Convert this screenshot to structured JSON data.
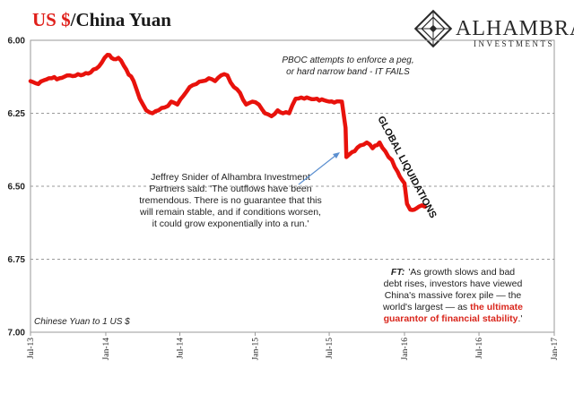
{
  "header": {
    "title_part1": "US $",
    "title_part2": "/China Yuan"
  },
  "logo": {
    "name": "ALHAMBRA",
    "sub": "INVESTMENTS",
    "icon": "diamond-lattice-icon"
  },
  "annotations": {
    "pboc": [
      "PBOC attempts to enforce a peg,",
      "or hard narrow band - IT FAILS"
    ],
    "global_liquidations": "GLOBAL LIQUIDATIONS",
    "snider": [
      "Jeffrey Snider of Alhambra Investment",
      "Partners said: 'The outflows have been",
      "tremendous. There is no guarantee that this",
      "will remain stable, and if conditions worsen,",
      "it could grow exponentially into a run.'"
    ],
    "ft_label": "FT:",
    "ft_line1": "'As growth slows and bad",
    "ft_line2": "debt rises, investors have viewed",
    "ft_line3": "China's massive forex pile — the",
    "ft_line4_plain": "world's largest — as ",
    "ft_line4_red": "the ultimate",
    "ft_line5_red": "guarantor of financial stability",
    "ft_line5_end": ".'",
    "series_label": "Chinese Yuan to 1 US $"
  },
  "chart_data": {
    "type": "line",
    "y_inverted": true,
    "ylim": [
      6.0,
      7.0
    ],
    "y_ticks": [
      "6.00",
      "6.25",
      "6.50",
      "6.75",
      "7.00"
    ],
    "x_ticks": [
      "Jul-13",
      "Jan-14",
      "Jul-14",
      "Jan-15",
      "Jul-15",
      "Jan-16",
      "Jul-16",
      "Jan-17"
    ],
    "xlim": [
      "2013-07-01",
      "2017-01-01"
    ],
    "grid": "horizontal dashed",
    "line_color": "#e8120c",
    "x": [
      "2013-07-01",
      "2013-07-20",
      "2013-08-15",
      "2013-09-10",
      "2013-10-05",
      "2013-11-01",
      "2013-11-25",
      "2013-12-15",
      "2014-01-05",
      "2014-01-15",
      "2014-02-01",
      "2014-02-20",
      "2014-03-10",
      "2014-03-25",
      "2014-04-10",
      "2014-04-25",
      "2014-05-10",
      "2014-05-25",
      "2014-06-10",
      "2014-06-25",
      "2014-07-10",
      "2014-07-25",
      "2014-08-10",
      "2014-08-25",
      "2014-09-10",
      "2014-09-25",
      "2014-10-10",
      "2014-10-25",
      "2014-11-10",
      "2014-11-25",
      "2014-12-10",
      "2014-12-25",
      "2015-01-10",
      "2015-01-25",
      "2015-02-10",
      "2015-02-25",
      "2015-03-10",
      "2015-03-25",
      "2015-04-10",
      "2015-05-01",
      "2015-06-01",
      "2015-07-01",
      "2015-08-01",
      "2015-08-10",
      "2015-08-12",
      "2015-08-20",
      "2015-09-01",
      "2015-09-15",
      "2015-10-01",
      "2015-10-15",
      "2015-11-01",
      "2015-11-15",
      "2015-12-01",
      "2015-12-15",
      "2016-01-01",
      "2016-01-07",
      "2016-01-15",
      "2016-01-25",
      "2016-02-05",
      "2016-02-20"
    ],
    "values": [
      6.14,
      6.15,
      6.13,
      6.13,
      6.12,
      6.12,
      6.11,
      6.09,
      6.05,
      6.06,
      6.06,
      6.1,
      6.14,
      6.2,
      6.24,
      6.25,
      6.24,
      6.23,
      6.21,
      6.22,
      6.19,
      6.16,
      6.15,
      6.14,
      6.13,
      6.14,
      6.12,
      6.12,
      6.16,
      6.18,
      6.22,
      6.21,
      6.22,
      6.25,
      6.26,
      6.24,
      6.25,
      6.25,
      6.2,
      6.2,
      6.2,
      6.21,
      6.21,
      6.3,
      6.4,
      6.39,
      6.38,
      6.36,
      6.35,
      6.37,
      6.35,
      6.38,
      6.41,
      6.45,
      6.49,
      6.56,
      6.58,
      6.58,
      6.57,
      6.57
    ]
  }
}
